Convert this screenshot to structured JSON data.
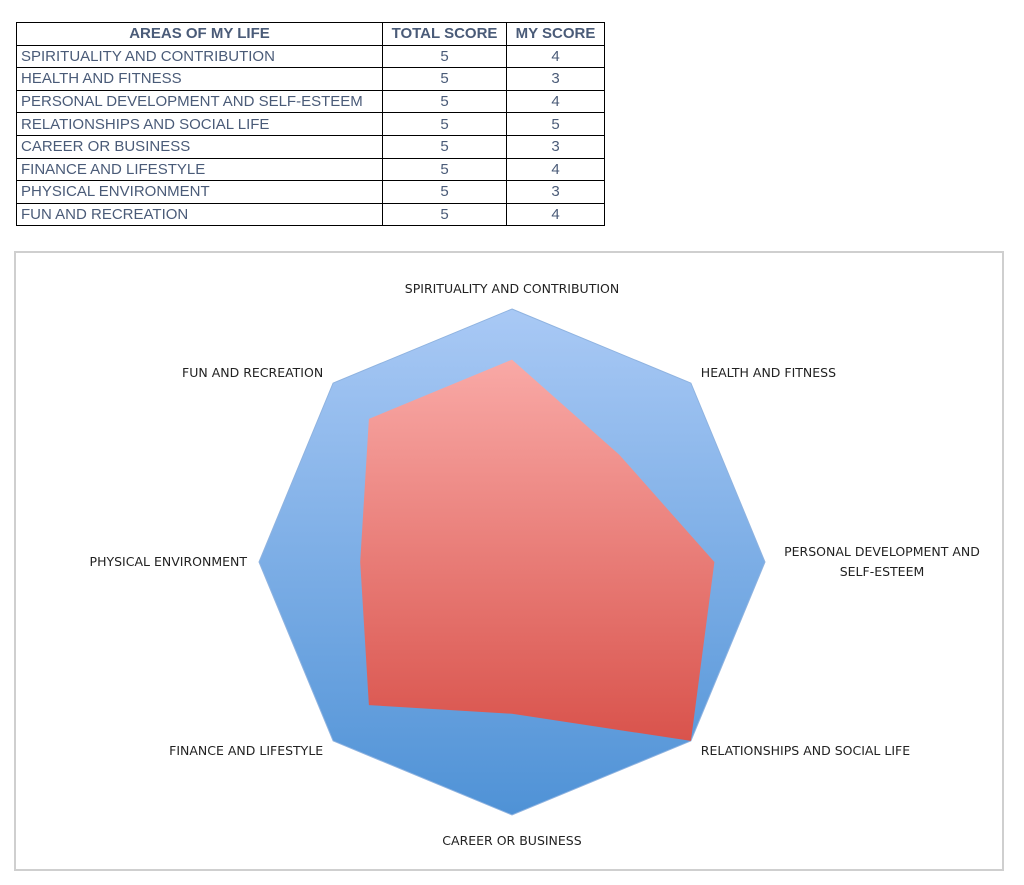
{
  "table": {
    "headers": [
      "AREAS OF MY LIFE",
      "TOTAL SCORE",
      "MY SCORE"
    ],
    "rows": [
      {
        "area": "SPIRITUALITY AND CONTRIBUTION",
        "total": 5,
        "mine": 4
      },
      {
        "area": "HEALTH AND FITNESS",
        "total": 5,
        "mine": 3
      },
      {
        "area": "PERSONAL DEVELOPMENT AND SELF-ESTEEM",
        "total": 5,
        "mine": 4
      },
      {
        "area": "RELATIONSHIPS AND SOCIAL LIFE",
        "total": 5,
        "mine": 5
      },
      {
        "area": "CAREER OR BUSINESS",
        "total": 5,
        "mine": 3
      },
      {
        "area": "FINANCE AND LIFESTYLE",
        "total": 5,
        "mine": 4
      },
      {
        "area": "PHYSICAL ENVIRONMENT",
        "total": 5,
        "mine": 3
      },
      {
        "area": "FUN AND RECREATION",
        "total": 5,
        "mine": 4
      }
    ]
  },
  "chart_data": {
    "type": "radar",
    "categories": [
      "SPIRITUALITY AND CONTRIBUTION",
      "HEALTH AND FITNESS",
      "PERSONAL DEVELOPMENT AND SELF-ESTEEM",
      "RELATIONSHIPS AND SOCIAL LIFE",
      "CAREER OR BUSINESS",
      "FINANCE AND LIFESTYLE",
      "PHYSICAL ENVIRONMENT",
      "FUN AND RECREATION"
    ],
    "axis_labels": [
      [
        "SPIRITUALITY AND CONTRIBUTION"
      ],
      [
        "HEALTH AND FITNESS"
      ],
      [
        "PERSONAL DEVELOPMENT AND",
        "SELF-ESTEEM"
      ],
      [
        "RELATIONSHIPS AND SOCIAL LIFE"
      ],
      [
        "CAREER OR BUSINESS"
      ],
      [
        "FINANCE AND LIFESTYLE"
      ],
      [
        "PHYSICAL ENVIRONMENT"
      ],
      [
        "FUN AND RECREATION"
      ]
    ],
    "series": [
      {
        "values": [
          5,
          5,
          5,
          5,
          5,
          5,
          5,
          5
        ],
        "color_top": "#a9c9f5",
        "color_bottom": "#4f92d6"
      },
      {
        "values": [
          4,
          3,
          4,
          5,
          3,
          4,
          3,
          4
        ],
        "color_top": "#f9a9a6",
        "color_bottom": "#d9534c"
      }
    ],
    "rlim": [
      0,
      5
    ],
    "grid": false,
    "legend": "none"
  }
}
